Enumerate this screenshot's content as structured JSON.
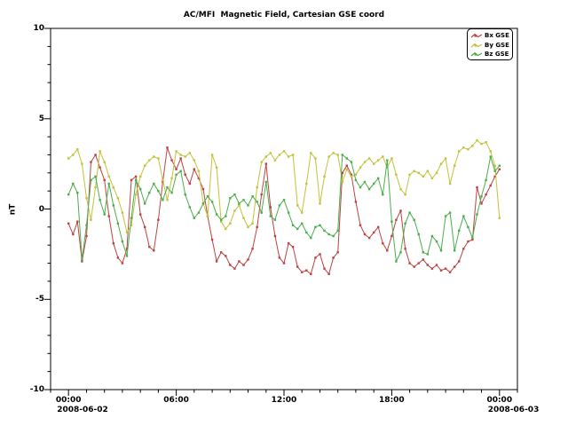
{
  "chart_data": {
    "type": "line",
    "title": "AC/MFI  Magnetic Field, Cartesian GSE coord",
    "ylabel": "nT",
    "xlabel": "",
    "ylim": [
      -10,
      10
    ],
    "xlim_hours": [
      -1,
      25
    ],
    "x_step_hours": 0.25,
    "x_ticks": [
      "00:00",
      "06:00",
      "12:00",
      "18:00",
      "00:00"
    ],
    "x_tick_hours": [
      0,
      6,
      12,
      18,
      24
    ],
    "x_minor_tick_interval_hours": 1,
    "x_date_labels": [
      "2008-06-02",
      "2008-06-03"
    ],
    "y_tick_labels": [
      "10",
      "5",
      "0",
      "-5",
      "-10"
    ],
    "y_tick_values": [
      10,
      5,
      0,
      -5,
      -10
    ],
    "y_minor_tick_interval": 1,
    "grid": false,
    "legend_position": "top-right",
    "axis_color": "#000000",
    "background_color": "#ffffff",
    "series": [
      {
        "name": "Bx GSE",
        "color": "#bc4343",
        "values": [
          -0.8,
          -1.4,
          -0.7,
          -2.9,
          -1.5,
          2.6,
          3.0,
          2.3,
          1.6,
          -0.4,
          -1.9,
          -2.7,
          -3.0,
          -2.2,
          1.6,
          1.8,
          -0.3,
          -1.0,
          -2.1,
          -2.3,
          -0.6,
          1.5,
          3.4,
          2.7,
          2.2,
          2.8,
          1.9,
          1.4,
          2.2,
          1.7,
          1.1,
          -0.4,
          -1.7,
          -2.9,
          -2.4,
          -2.6,
          -3.1,
          -3.3,
          -2.9,
          -3.1,
          -2.8,
          -2.2,
          -1.0,
          0.8,
          2.5,
          0.1,
          -1.5,
          -2.7,
          -3.0,
          -1.9,
          -2.1,
          -3.2,
          -3.5,
          -3.4,
          -3.6,
          -2.7,
          -2.5,
          -3.3,
          -3.6,
          -2.7,
          -2.4,
          2.0,
          2.4,
          1.9,
          0.4,
          -0.9,
          -1.4,
          -1.6,
          -1.3,
          -1.0,
          -1.9,
          -2.3,
          -1.5,
          -0.6,
          -0.1,
          -2.2,
          -3.0,
          -3.2,
          -3.0,
          -2.8,
          -3.1,
          -3.3,
          -3.1,
          -3.4,
          -3.3,
          -3.5,
          -3.2,
          -2.9,
          -2.2,
          -1.8,
          -1.7,
          1.2,
          0.3,
          0.8,
          1.3,
          1.8,
          2.2
        ]
      },
      {
        "name": "By GSE",
        "color": "#c2c23c",
        "values": [
          2.8,
          3.0,
          3.3,
          2.5,
          0.6,
          -0.6,
          1.2,
          3.2,
          2.6,
          1.8,
          1.2,
          0.6,
          -0.2,
          -1.3,
          -0.9,
          0.8,
          1.8,
          2.4,
          2.7,
          2.9,
          2.8,
          1.6,
          0.5,
          1.7,
          3.2,
          3.0,
          2.9,
          3.1,
          2.7,
          2.1,
          0.3,
          -0.4,
          3.0,
          2.3,
          -0.7,
          -1.1,
          -0.8,
          -0.1,
          0.2,
          -0.5,
          -1.0,
          -0.8,
          1.2,
          2.6,
          2.9,
          3.1,
          2.7,
          3.0,
          3.2,
          2.9,
          3.0,
          0.2,
          -0.2,
          1.4,
          3.1,
          2.8,
          0.3,
          1.8,
          2.9,
          3.1,
          3.0,
          1.5,
          2.2,
          1.8,
          1.9,
          2.3,
          2.6,
          2.8,
          2.5,
          2.7,
          2.9,
          2.3,
          2.8,
          1.9,
          1.1,
          0.8,
          1.9,
          2.1,
          2.0,
          1.8,
          2.1,
          1.7,
          2.0,
          2.5,
          2.8,
          1.4,
          2.4,
          3.2,
          3.4,
          3.3,
          3.5,
          3.8,
          3.6,
          3.7,
          3.2,
          2.4,
          -0.5
        ]
      },
      {
        "name": "Bz GSE",
        "color": "#4bae4b",
        "values": [
          0.8,
          1.4,
          0.9,
          -2.8,
          -0.9,
          1.6,
          1.8,
          0.5,
          -0.3,
          1.4,
          0.2,
          -0.8,
          -1.8,
          -2.6,
          -0.5,
          1.6,
          1.1,
          0.3,
          0.9,
          1.4,
          1.0,
          0.5,
          1.2,
          0.9,
          1.9,
          2.1,
          0.8,
          0.1,
          -0.5,
          -0.2,
          0.3,
          0.7,
          0.4,
          -0.3,
          -0.6,
          -0.4,
          0.6,
          0.8,
          0.3,
          0.5,
          0.2,
          0.7,
          0.4,
          -0.2,
          1.5,
          -0.4,
          -0.6,
          0.2,
          0.5,
          -0.2,
          -0.9,
          -1.1,
          -0.8,
          -1.3,
          -1.6,
          -1.0,
          -0.9,
          -1.2,
          -1.4,
          -1.5,
          -1.2,
          3.0,
          2.8,
          2.6,
          1.6,
          1.2,
          1.5,
          1.1,
          1.4,
          1.7,
          0.8,
          2.7,
          -0.7,
          -2.9,
          -2.4,
          -0.8,
          -0.2,
          -0.6,
          -1.4,
          -2.4,
          -2.5,
          -1.5,
          -1.8,
          -2.3,
          -0.4,
          -0.2,
          -2.3,
          -1.2,
          -0.4,
          -1.0,
          -1.6,
          -0.3,
          0.7,
          1.6,
          2.9,
          2.1,
          2.4
        ]
      }
    ]
  }
}
